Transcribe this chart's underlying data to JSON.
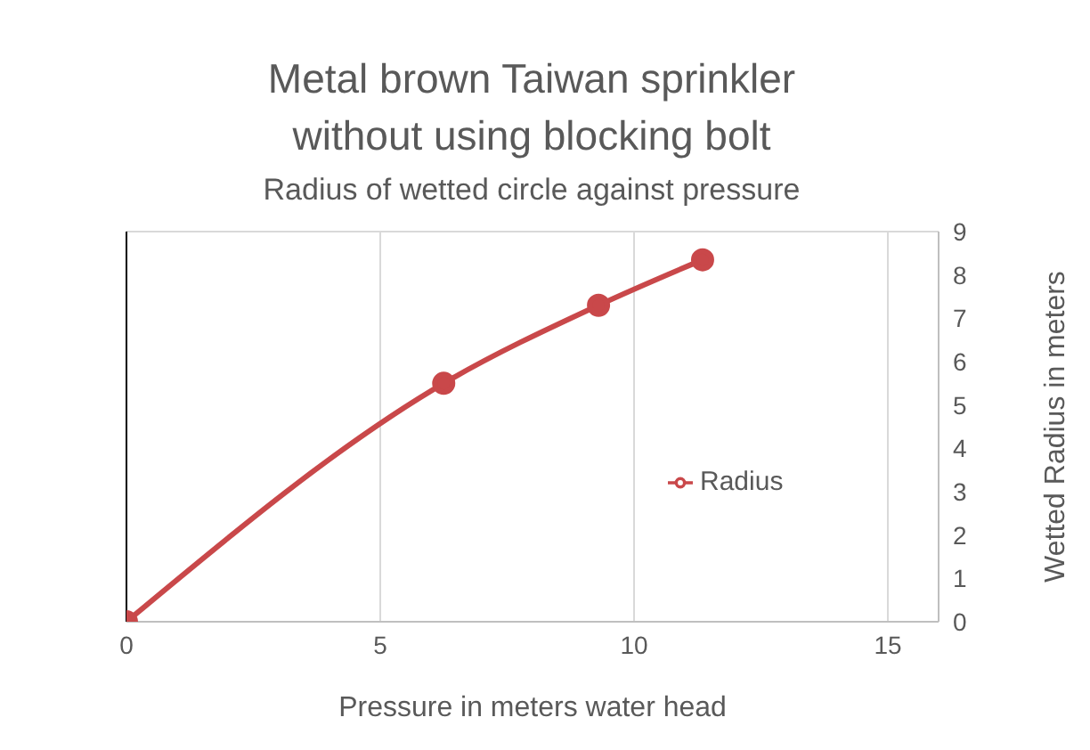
{
  "chart_data": {
    "type": "line",
    "title": "Metal brown Taiwan sprinkler without using blocking bolt",
    "subtitle": "Radius of wetted circle against pressure",
    "xlabel": "Pressure in meters water head",
    "ylabel": "Wetted Radius in meters",
    "x": [
      0,
      6.25,
      9.3,
      11.35
    ],
    "series": [
      {
        "name": "Radius",
        "color": "#c9484a",
        "values": [
          0,
          5.5,
          7.3,
          8.35
        ]
      }
    ],
    "xlim": [
      0,
      16
    ],
    "xticks": [
      0,
      5,
      10,
      15
    ],
    "ylim": [
      0,
      9
    ],
    "yticks": [
      0,
      1,
      2,
      3,
      4,
      5,
      6,
      7,
      8,
      9
    ],
    "grid": true,
    "legend": "right",
    "marker": "circle",
    "line_style": "solid"
  }
}
